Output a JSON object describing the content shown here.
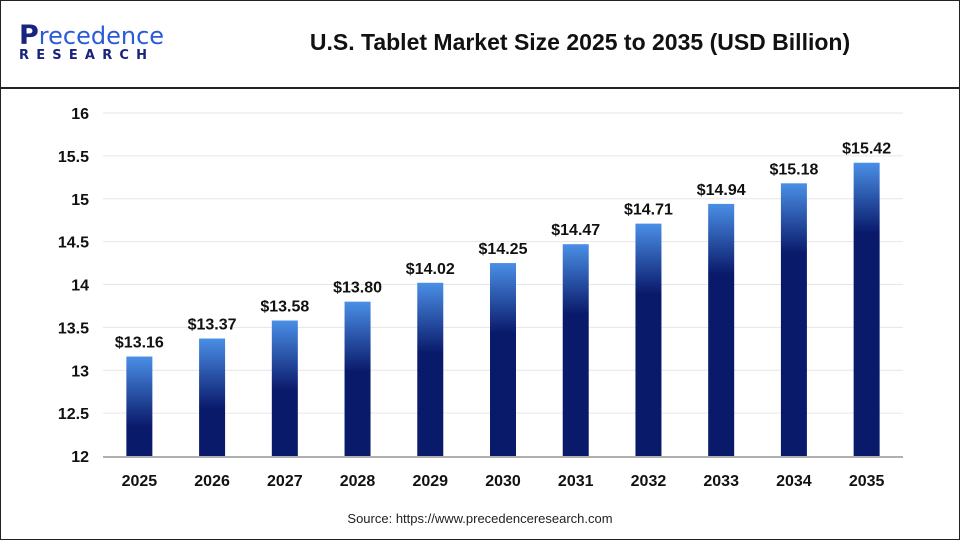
{
  "header": {
    "logo_text_top": "Precedence",
    "logo_text_bottom": "RESEARCH",
    "title": "U.S. Tablet Market Size 2025 to 2035 (USD Billion)"
  },
  "source": "Source: https://www.precedenceresearch.com",
  "colors": {
    "bar_top": "#4a8fe6",
    "bar_bottom": "#0a1a6b",
    "grid": "#e6e6e6",
    "axis": "#b0b0b0"
  },
  "chart_data": {
    "type": "bar",
    "title": "U.S. Tablet Market Size 2025 to 2035 (USD Billion)",
    "categories": [
      "2025",
      "2026",
      "2027",
      "2028",
      "2029",
      "2030",
      "2031",
      "2032",
      "2033",
      "2034",
      "2035"
    ],
    "values": [
      13.16,
      13.37,
      13.58,
      13.8,
      14.02,
      14.25,
      14.47,
      14.71,
      14.94,
      15.18,
      15.42
    ],
    "data_labels": [
      "$13.16",
      "$13.37",
      "$13.58",
      "$13.80",
      "$14.02",
      "$14.25",
      "$14.47",
      "$14.71",
      "$14.94",
      "$15.18",
      "$15.42"
    ],
    "yticks": [
      "12",
      "12.5",
      "13",
      "13.5",
      "14",
      "14.5",
      "15",
      "15.5",
      "16"
    ],
    "ylim": [
      12,
      16
    ],
    "grid": true,
    "xlabel": "",
    "ylabel": ""
  }
}
